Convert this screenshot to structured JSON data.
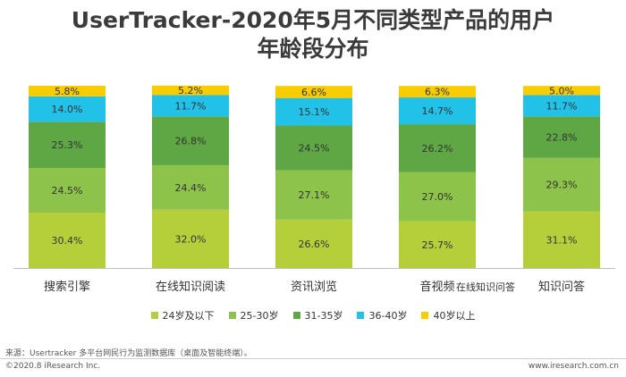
{
  "title": {
    "line1": "UserTracker-2020年5月不同类型产品的用户",
    "line2": "年龄段分布"
  },
  "chart_data": {
    "type": "bar",
    "stacked": true,
    "categories": [
      "搜索引擎",
      "在线知识阅读",
      "资讯浏览",
      "音视频",
      "知识问答"
    ],
    "overlay_label": "在线知识问答",
    "series": [
      {
        "name": "24岁及以下",
        "color": "#b5cf3a",
        "values": [
          30.4,
          32.0,
          26.6,
          25.7,
          31.1
        ]
      },
      {
        "name": "25-30岁",
        "color": "#8dc24b",
        "values": [
          24.5,
          24.4,
          27.1,
          27.0,
          29.3
        ]
      },
      {
        "name": "31-35岁",
        "color": "#5ea744",
        "values": [
          25.3,
          26.8,
          24.5,
          26.2,
          22.8
        ]
      },
      {
        "name": "36-40岁",
        "color": "#22c1e8",
        "values": [
          14.0,
          11.7,
          15.1,
          14.7,
          11.7
        ]
      },
      {
        "name": "40岁以上",
        "color": "#f7cd00",
        "values": [
          5.8,
          5.2,
          6.6,
          6.3,
          5.0
        ]
      }
    ],
    "ylim": [
      0,
      100
    ],
    "grid": false,
    "legend_position": "bottom"
  },
  "footer": {
    "source": "来源：Usertracker 多平台网民行为监测数据库（桌面及智能终端）。",
    "copyright": "©2020.8 iResearch Inc.",
    "website": "www.iresearch.com.cn"
  }
}
